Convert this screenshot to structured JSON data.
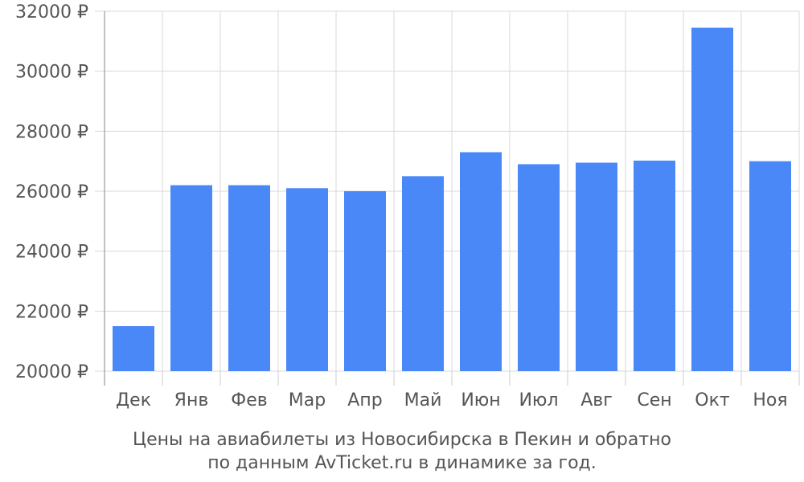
{
  "chart_data": {
    "type": "bar",
    "categories": [
      "Дек",
      "Янв",
      "Фев",
      "Мар",
      "Апр",
      "Май",
      "Июн",
      "Июл",
      "Авг",
      "Сен",
      "Окт",
      "Ноя"
    ],
    "values": [
      21500,
      26200,
      26200,
      26100,
      26000,
      26500,
      27300,
      26900,
      26950,
      27020,
      31450,
      27000
    ],
    "ylim": [
      20000,
      32000
    ],
    "y_ticks": [
      20000,
      22000,
      24000,
      26000,
      28000,
      30000,
      32000
    ],
    "y_tick_suffix": " ₽",
    "grid": true,
    "bar_color": "#4a88f8",
    "title": "",
    "xlabel": "",
    "ylabel": ""
  },
  "caption": {
    "line1": "Цены на авиабилеты из Новосибирска в Пекин и обратно",
    "line2": "по данным AvTicket.ru в динамике за год."
  }
}
